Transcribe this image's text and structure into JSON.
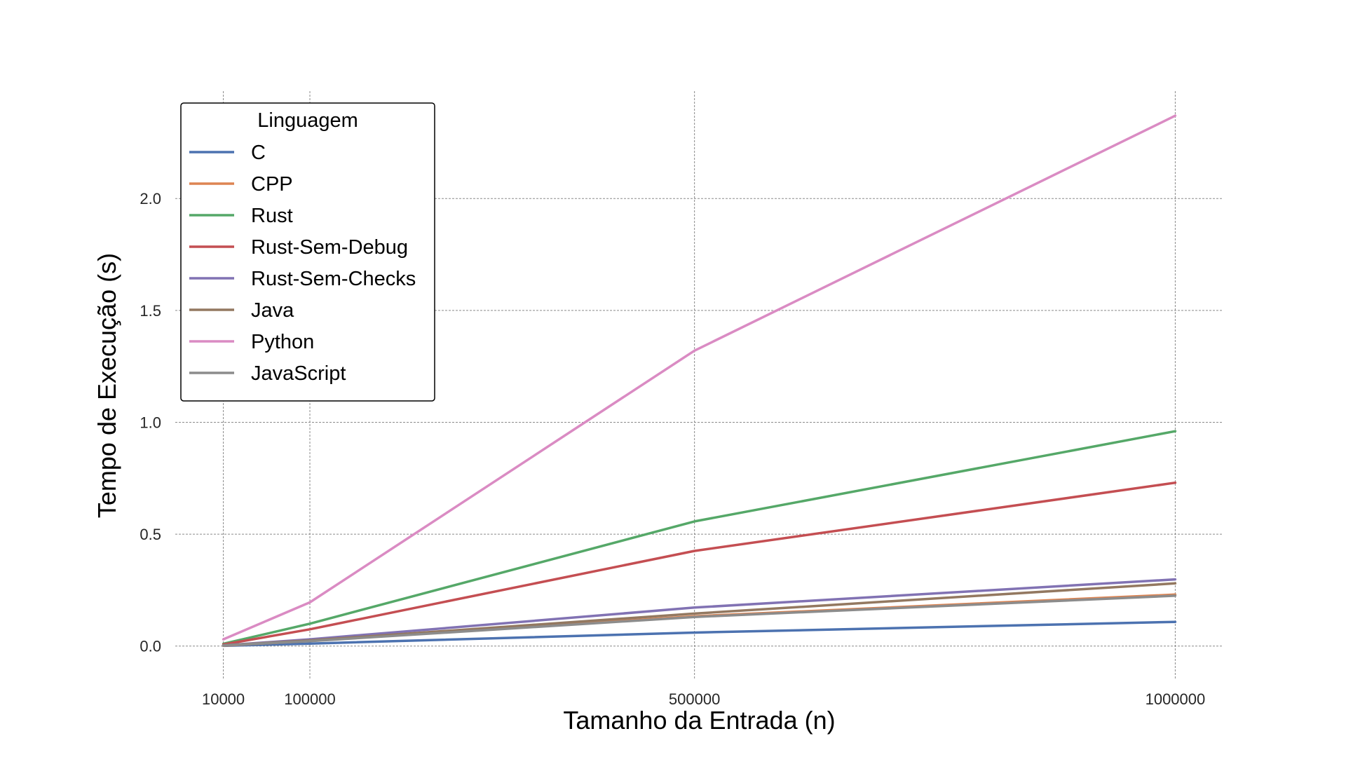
{
  "chart_data": {
    "type": "line",
    "xlabel": "Tamanho da Entrada (n)",
    "ylabel": "Tempo de Execução (s)",
    "x": [
      10000,
      100000,
      500000,
      1000000
    ],
    "x_tick_labels": [
      "10000",
      "100000",
      "500000",
      "1000000"
    ],
    "y_ticks": [
      0.0,
      0.5,
      1.0,
      1.5,
      2.0
    ],
    "y_tick_labels": [
      "0.0",
      "0.5",
      "1.0",
      "1.5",
      "2.0"
    ],
    "xlim": [
      -40000,
      1050000
    ],
    "ylim": [
      -0.12,
      2.48
    ],
    "grid": true,
    "legend": {
      "title": "Linguagem",
      "placement": "top-left"
    },
    "series": [
      {
        "name": "C",
        "color": "#4c72b0",
        "values": [
          0.001,
          0.011,
          0.06,
          0.108
        ]
      },
      {
        "name": "CPP",
        "color": "#dd8452",
        "values": [
          0.002,
          0.023,
          0.133,
          0.23
        ]
      },
      {
        "name": "Rust",
        "color": "#55a868",
        "values": [
          0.01,
          0.1,
          0.557,
          0.96
        ]
      },
      {
        "name": "Rust-Sem-Debug",
        "color": "#c44e52",
        "values": [
          0.007,
          0.075,
          0.425,
          0.73
        ]
      },
      {
        "name": "Rust-Sem-Checks",
        "color": "#8172b3",
        "values": [
          0.003,
          0.03,
          0.172,
          0.298
        ]
      },
      {
        "name": "Java",
        "color": "#937860",
        "values": [
          0.003,
          0.025,
          0.145,
          0.28
        ]
      },
      {
        "name": "Python",
        "color": "#da8bc3",
        "values": [
          0.03,
          0.195,
          1.32,
          2.37
        ]
      },
      {
        "name": "JavaScript",
        "color": "#8c8c8c",
        "values": [
          0.003,
          0.022,
          0.13,
          0.225
        ]
      }
    ]
  }
}
